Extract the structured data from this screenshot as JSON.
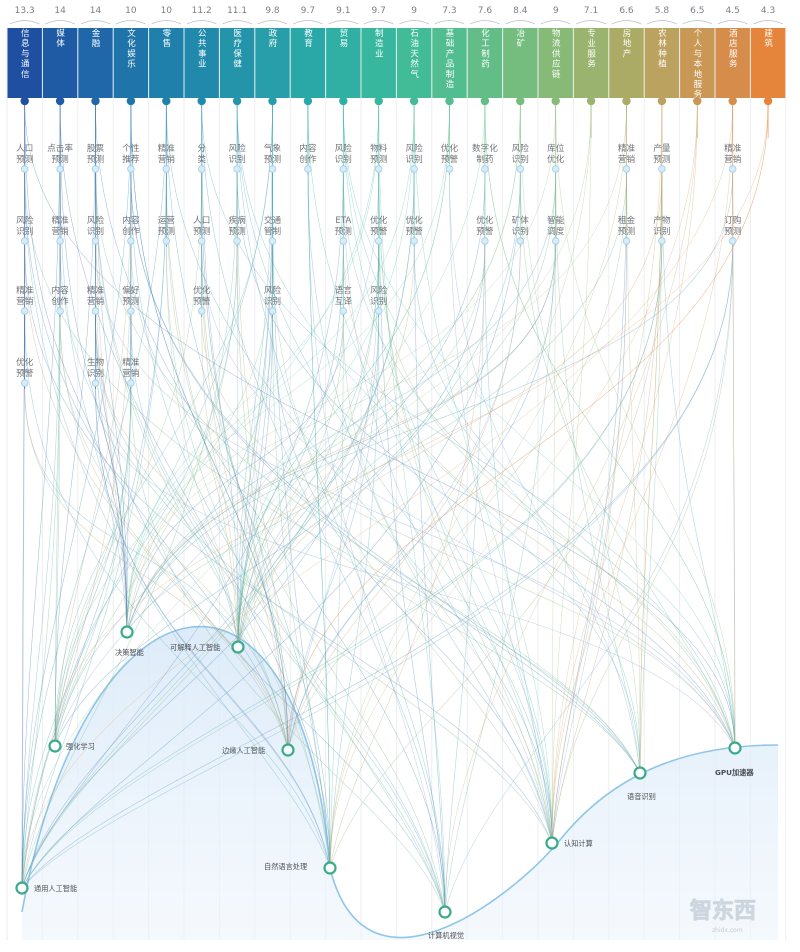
{
  "industries": [
    {
      "name": "信息与通信",
      "score": "13.3",
      "color": "#1f4fa0"
    },
    {
      "name": "媒体",
      "score": "14",
      "color": "#1f5aa5"
    },
    {
      "name": "金融",
      "score": "14",
      "color": "#1f67a8"
    },
    {
      "name": "文化娱乐",
      "score": "10",
      "color": "#1f74aa"
    },
    {
      "name": "零售",
      "score": "10",
      "color": "#1f80ab"
    },
    {
      "name": "公共事业",
      "score": "11.2",
      "color": "#218aac"
    },
    {
      "name": "医疗保健",
      "score": "11.1",
      "color": "#2494ab"
    },
    {
      "name": "政府",
      "score": "9.8",
      "color": "#279ea9"
    },
    {
      "name": "教育",
      "score": "9.7",
      "color": "#2aa7a7"
    },
    {
      "name": "贸易",
      "score": "9.1",
      "color": "#2fb0a3"
    },
    {
      "name": "制造业",
      "score": "9.7",
      "color": "#36b79e"
    },
    {
      "name": "石油天然气",
      "score": "9",
      "color": "#42bb97"
    },
    {
      "name": "基础产品制造",
      "score": "7.3",
      "color": "#52bd8f"
    },
    {
      "name": "化工制药",
      "score": "7.6",
      "color": "#63bd87"
    },
    {
      "name": "冶矿",
      "score": "8.4",
      "color": "#75bc7f"
    },
    {
      "name": "物流供应链",
      "score": "9",
      "color": "#87b977"
    },
    {
      "name": "专业服务",
      "score": "7.1",
      "color": "#9ab36e"
    },
    {
      "name": "房地产",
      "score": "6.6",
      "color": "#abab66"
    },
    {
      "name": "农林种植",
      "score": "5.8",
      "color": "#bba25e"
    },
    {
      "name": "个人与本地服务",
      "score": "6.5",
      "color": "#c99856"
    },
    {
      "name": "酒店服务",
      "score": "4.5",
      "color": "#d68d4c"
    },
    {
      "name": "建筑",
      "score": "4.3",
      "color": "#e5853b"
    }
  ],
  "use_cases": [
    {
      "col": 0,
      "row": 0,
      "label": "人口预测"
    },
    {
      "col": 0,
      "row": 1,
      "label": "风险识别"
    },
    {
      "col": 0,
      "row": 2,
      "label": "精准营销"
    },
    {
      "col": 0,
      "row": 3,
      "label": "优化预警"
    },
    {
      "col": 1,
      "row": 0,
      "label": "点击率预测"
    },
    {
      "col": 1,
      "row": 1,
      "label": "精准营销"
    },
    {
      "col": 1,
      "row": 2,
      "label": "内容创作"
    },
    {
      "col": 2,
      "row": 0,
      "label": "股票预测"
    },
    {
      "col": 2,
      "row": 1,
      "label": "风险识别"
    },
    {
      "col": 2,
      "row": 2,
      "label": "精准营销"
    },
    {
      "col": 2,
      "row": 3,
      "label": "生物识别"
    },
    {
      "col": 3,
      "row": 0,
      "label": "个性推荐"
    },
    {
      "col": 3,
      "row": 1,
      "label": "内容创作"
    },
    {
      "col": 3,
      "row": 2,
      "label": "偏好预测"
    },
    {
      "col": 3,
      "row": 3,
      "label": "精准营销"
    },
    {
      "col": 4,
      "row": 0,
      "label": "精准营销"
    },
    {
      "col": 4,
      "row": 1,
      "label": "运营预测"
    },
    {
      "col": 5,
      "row": 0,
      "label": "分类"
    },
    {
      "col": 5,
      "row": 1,
      "label": "人口预测"
    },
    {
      "col": 5,
      "row": 2,
      "label": "优化预警"
    },
    {
      "col": 6,
      "row": 0,
      "label": "风险识别"
    },
    {
      "col": 6,
      "row": 1,
      "label": "疾病预测"
    },
    {
      "col": 7,
      "row": 0,
      "label": "气象预测"
    },
    {
      "col": 7,
      "row": 1,
      "label": "交通管制"
    },
    {
      "col": 7,
      "row": 2,
      "label": "风险识别"
    },
    {
      "col": 8,
      "row": 0,
      "label": "内容创作"
    },
    {
      "col": 9,
      "row": 0,
      "label": "风险识别"
    },
    {
      "col": 9,
      "row": 1,
      "label": "ETA预测"
    },
    {
      "col": 9,
      "row": 2,
      "label": "语言互译"
    },
    {
      "col": 10,
      "row": 0,
      "label": "物料预测"
    },
    {
      "col": 10,
      "row": 1,
      "label": "优化预警"
    },
    {
      "col": 10,
      "row": 2,
      "label": "风险识别"
    },
    {
      "col": 11,
      "row": 0,
      "label": "风险识别"
    },
    {
      "col": 11,
      "row": 1,
      "label": "优化预警"
    },
    {
      "col": 12,
      "row": 0,
      "label": "优化预警"
    },
    {
      "col": 13,
      "row": 0,
      "label": "数字化制药"
    },
    {
      "col": 13,
      "row": 1,
      "label": "优化预警"
    },
    {
      "col": 14,
      "row": 0,
      "label": "风险识别"
    },
    {
      "col": 14,
      "row": 1,
      "label": "矿体识别"
    },
    {
      "col": 15,
      "row": 0,
      "label": "库位优化"
    },
    {
      "col": 15,
      "row": 1,
      "label": "智能调度"
    },
    {
      "col": 17,
      "row": 0,
      "label": "精准营销"
    },
    {
      "col": 17,
      "row": 1,
      "label": "租金预测"
    },
    {
      "col": 18,
      "row": 0,
      "label": "产量预测"
    },
    {
      "col": 18,
      "row": 1,
      "label": "产物识别"
    },
    {
      "col": 20,
      "row": 0,
      "label": "精准营销"
    },
    {
      "col": 20,
      "row": 1,
      "label": "订购预测"
    }
  ],
  "technologies": [
    {
      "label": "通用人工智能",
      "t": 0.0
    },
    {
      "label": "强化学习",
      "t": 0.05
    },
    {
      "label": "决策智能",
      "t": 0.15
    },
    {
      "label": "可解释人工智能",
      "t": 0.3
    },
    {
      "label": "边缘人工智能",
      "t": 0.36
    },
    {
      "label": "自然语言处理",
      "t": 0.41
    },
    {
      "label": "计算机视觉",
      "t": 0.55
    },
    {
      "label": "认知计算",
      "t": 0.7
    },
    {
      "label": "语音识别",
      "t": 0.82
    },
    {
      "label": "GPU加速器",
      "t": 0.94
    }
  ],
  "watermark": "智东西",
  "watermark_sub": "zhidx.com",
  "colors": {
    "curve": "#8ec5ea",
    "fill": "#e7f1fb",
    "node": "#3aaa88",
    "divider": "#eceef0"
  }
}
